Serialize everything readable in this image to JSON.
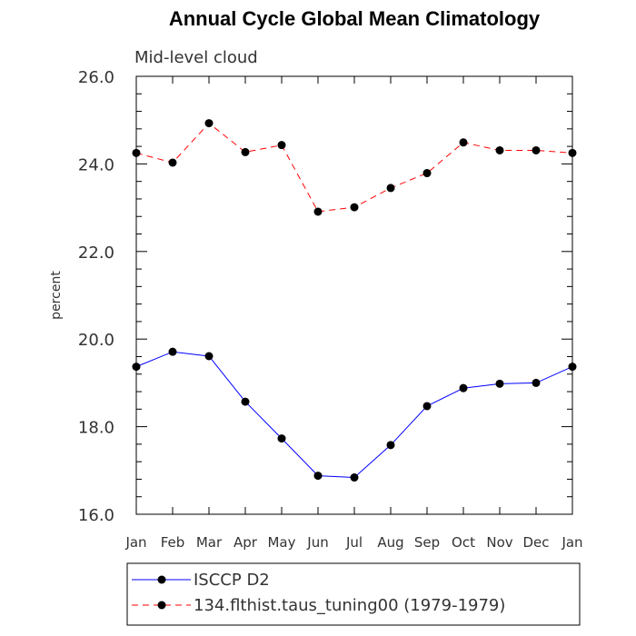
{
  "chart_data": {
    "type": "line",
    "title": "Annual Cycle Global Mean Climatology",
    "subtitle": "Mid-level cloud",
    "ylabel": "percent",
    "xlabel": "",
    "categories": [
      "Jan",
      "Feb",
      "Mar",
      "Apr",
      "May",
      "Jun",
      "Jul",
      "Aug",
      "Sep",
      "Oct",
      "Nov",
      "Dec",
      "Jan"
    ],
    "ylim": [
      16.0,
      26.0
    ],
    "yticks": [
      "16.0",
      "18.0",
      "20.0",
      "22.0",
      "24.0",
      "26.0"
    ],
    "grid": false,
    "legend_position": "bottom",
    "series": [
      {
        "name": "ISCCP D2",
        "color": "#0000ff",
        "style": "solid",
        "values": [
          19.37,
          19.71,
          19.61,
          18.57,
          17.73,
          16.88,
          16.84,
          17.58,
          18.47,
          18.88,
          18.98,
          19.0,
          19.37
        ]
      },
      {
        "name": "134.flthist.taus_tuning00 (1979-1979)",
        "color": "#ff0000",
        "style": "dashed",
        "values": [
          24.25,
          24.03,
          24.93,
          24.27,
          24.43,
          22.91,
          23.01,
          23.45,
          23.79,
          24.49,
          24.31,
          24.31,
          24.25
        ]
      }
    ]
  }
}
